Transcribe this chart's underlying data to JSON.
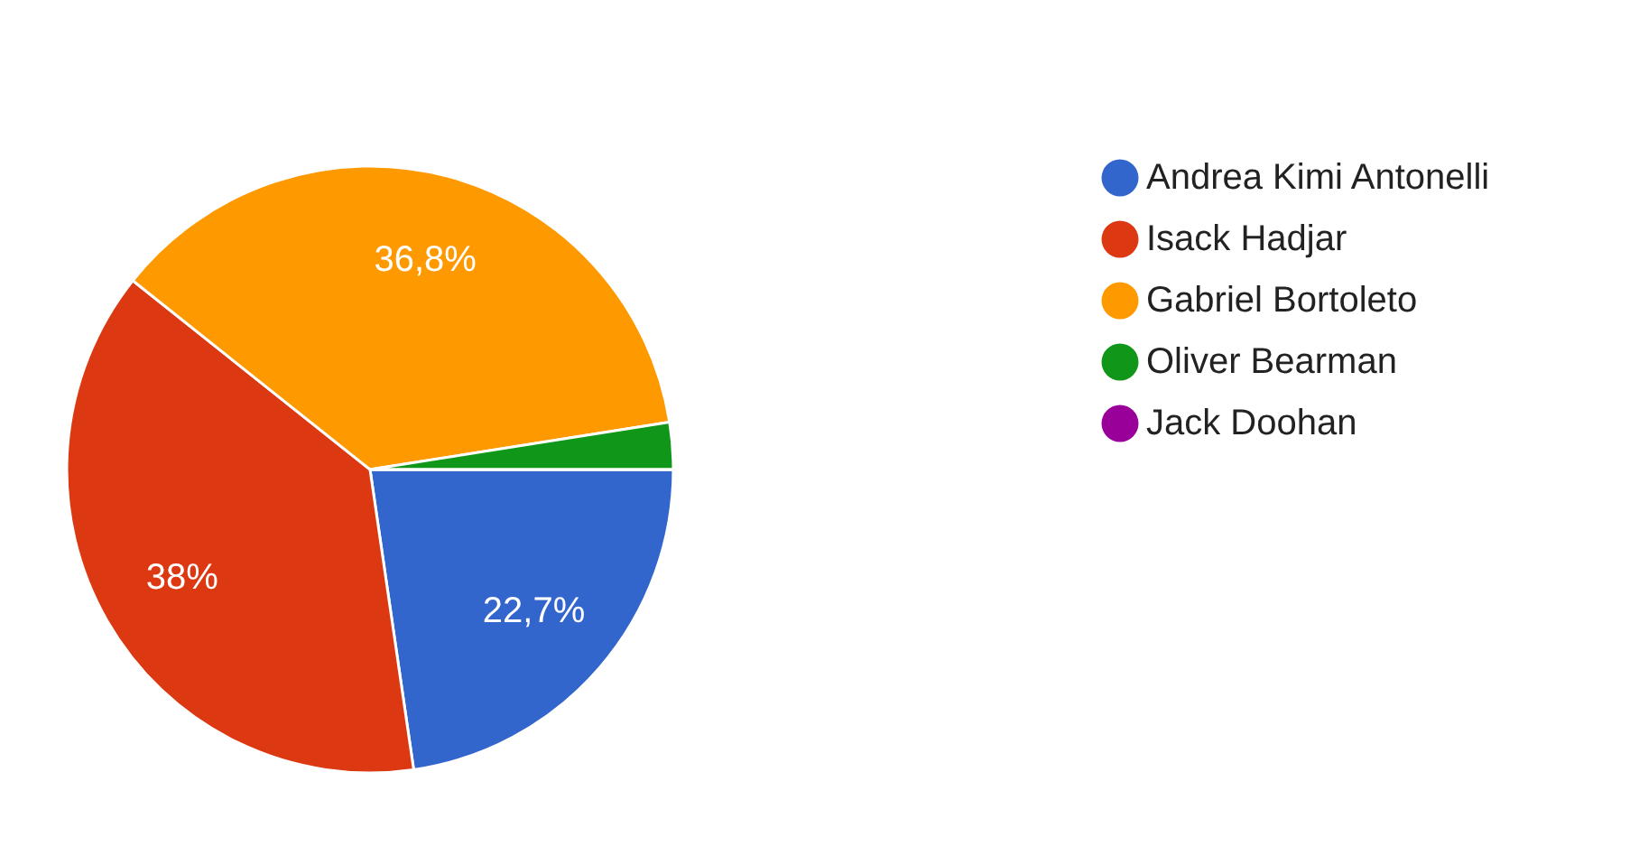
{
  "chart_data": {
    "type": "pie",
    "categories": [
      "Andrea Kimi Antonelli",
      "Isack Hadjar",
      "Gabriel Bortoleto",
      "Oliver Bearman",
      "Jack Doohan"
    ],
    "values": [
      22.7,
      38,
      36.8,
      2.5,
      0
    ],
    "value_labels": [
      "22,7%",
      "38%",
      "36,8%",
      null,
      null
    ],
    "colors": [
      "#3366cc",
      "#dc3912",
      "#ff9900",
      "#109618",
      "#990099"
    ],
    "legend": "right"
  }
}
